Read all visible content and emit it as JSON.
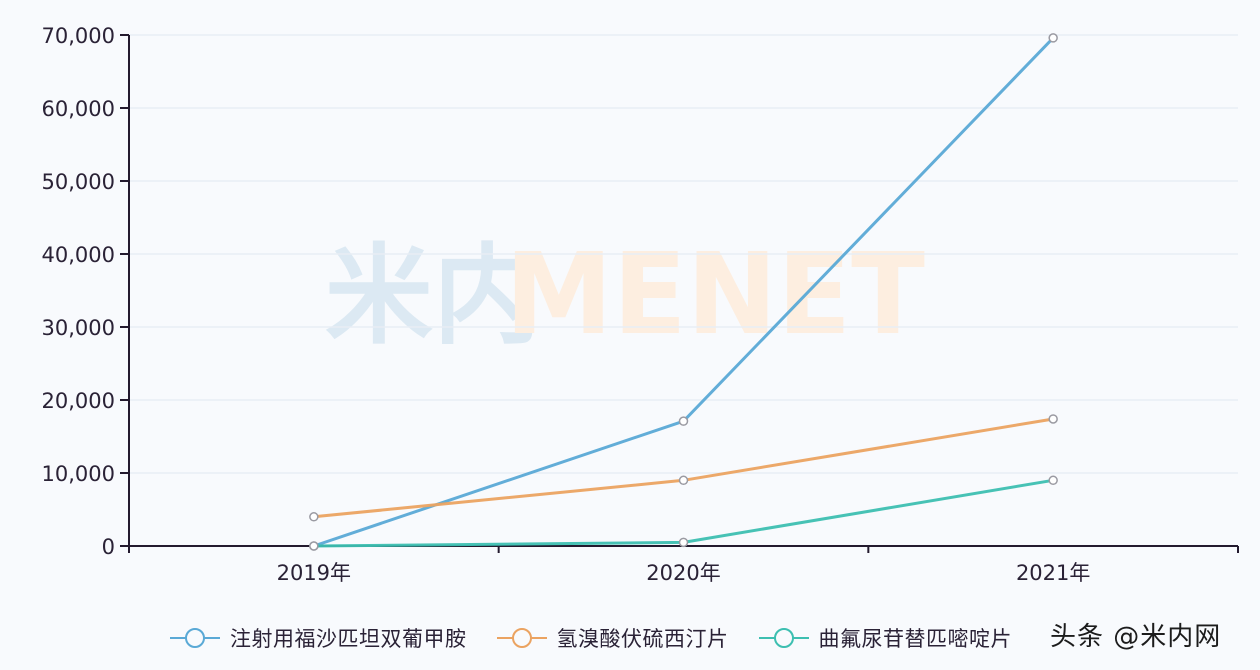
{
  "chart_data": {
    "type": "line",
    "title": "",
    "xlabel": "",
    "ylabel": "",
    "categories": [
      "2019年",
      "2020年",
      "2021年"
    ],
    "y_ticks": [
      "0",
      "10,000",
      "20,000",
      "30,000",
      "40,000",
      "50,000",
      "60,000",
      "70,000"
    ],
    "ylim": [
      0,
      70000
    ],
    "grid": true,
    "legend_position": "bottom",
    "series": [
      {
        "name": "注射用福沙匹坦双葡甲胺",
        "color": "#5aa9d6",
        "values": [
          0,
          17100,
          69600
        ]
      },
      {
        "name": "氢溴酸伏硫西汀片",
        "color": "#eba361",
        "values": [
          4000,
          9000,
          17400
        ]
      },
      {
        "name": "曲氟尿苷替匹嘧啶片",
        "color": "#3dbfb1",
        "values": [
          0,
          500,
          9000
        ]
      }
    ]
  },
  "watermark": {
    "cn": "米内",
    "en": "MENET",
    "cn_color": "#dce9f3",
    "en_color": "#fdeee0"
  },
  "credit": "头条 @米内网",
  "colors": {
    "background": "#f8fafd",
    "axis": "#231a2e",
    "grid": "#e8eef5",
    "text": "#2a2236"
  }
}
